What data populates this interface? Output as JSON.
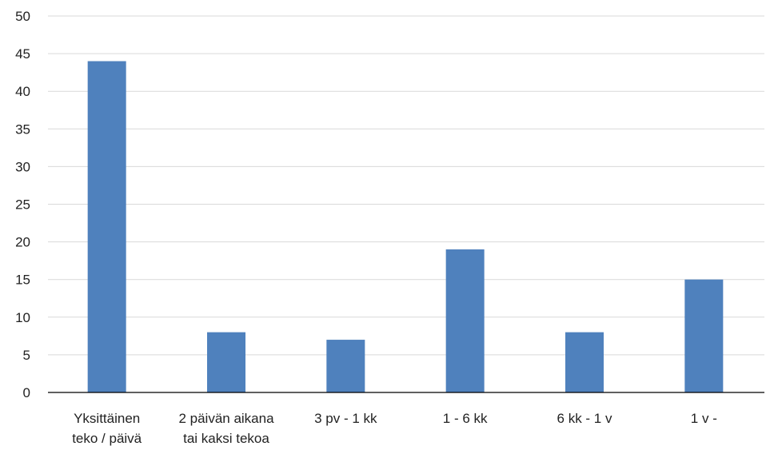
{
  "chart_data": {
    "type": "bar",
    "title": "",
    "xlabel": "",
    "ylabel": "",
    "categories": [
      [
        "Yksittäinen",
        "teko / päivä"
      ],
      [
        "2 päivän aikana",
        "tai kaksi tekoa"
      ],
      [
        "3 pv - 1 kk"
      ],
      [
        "1 - 6 kk"
      ],
      [
        "6 kk - 1 v"
      ],
      [
        "1 v -"
      ]
    ],
    "values": [
      44,
      8,
      7,
      19,
      8,
      15
    ],
    "ylim": [
      0,
      50
    ],
    "yticks": [
      0,
      5,
      10,
      15,
      20,
      25,
      30,
      35,
      40,
      45,
      50
    ],
    "grid": true,
    "legend": "none",
    "bar_color": "#4f81bd"
  }
}
